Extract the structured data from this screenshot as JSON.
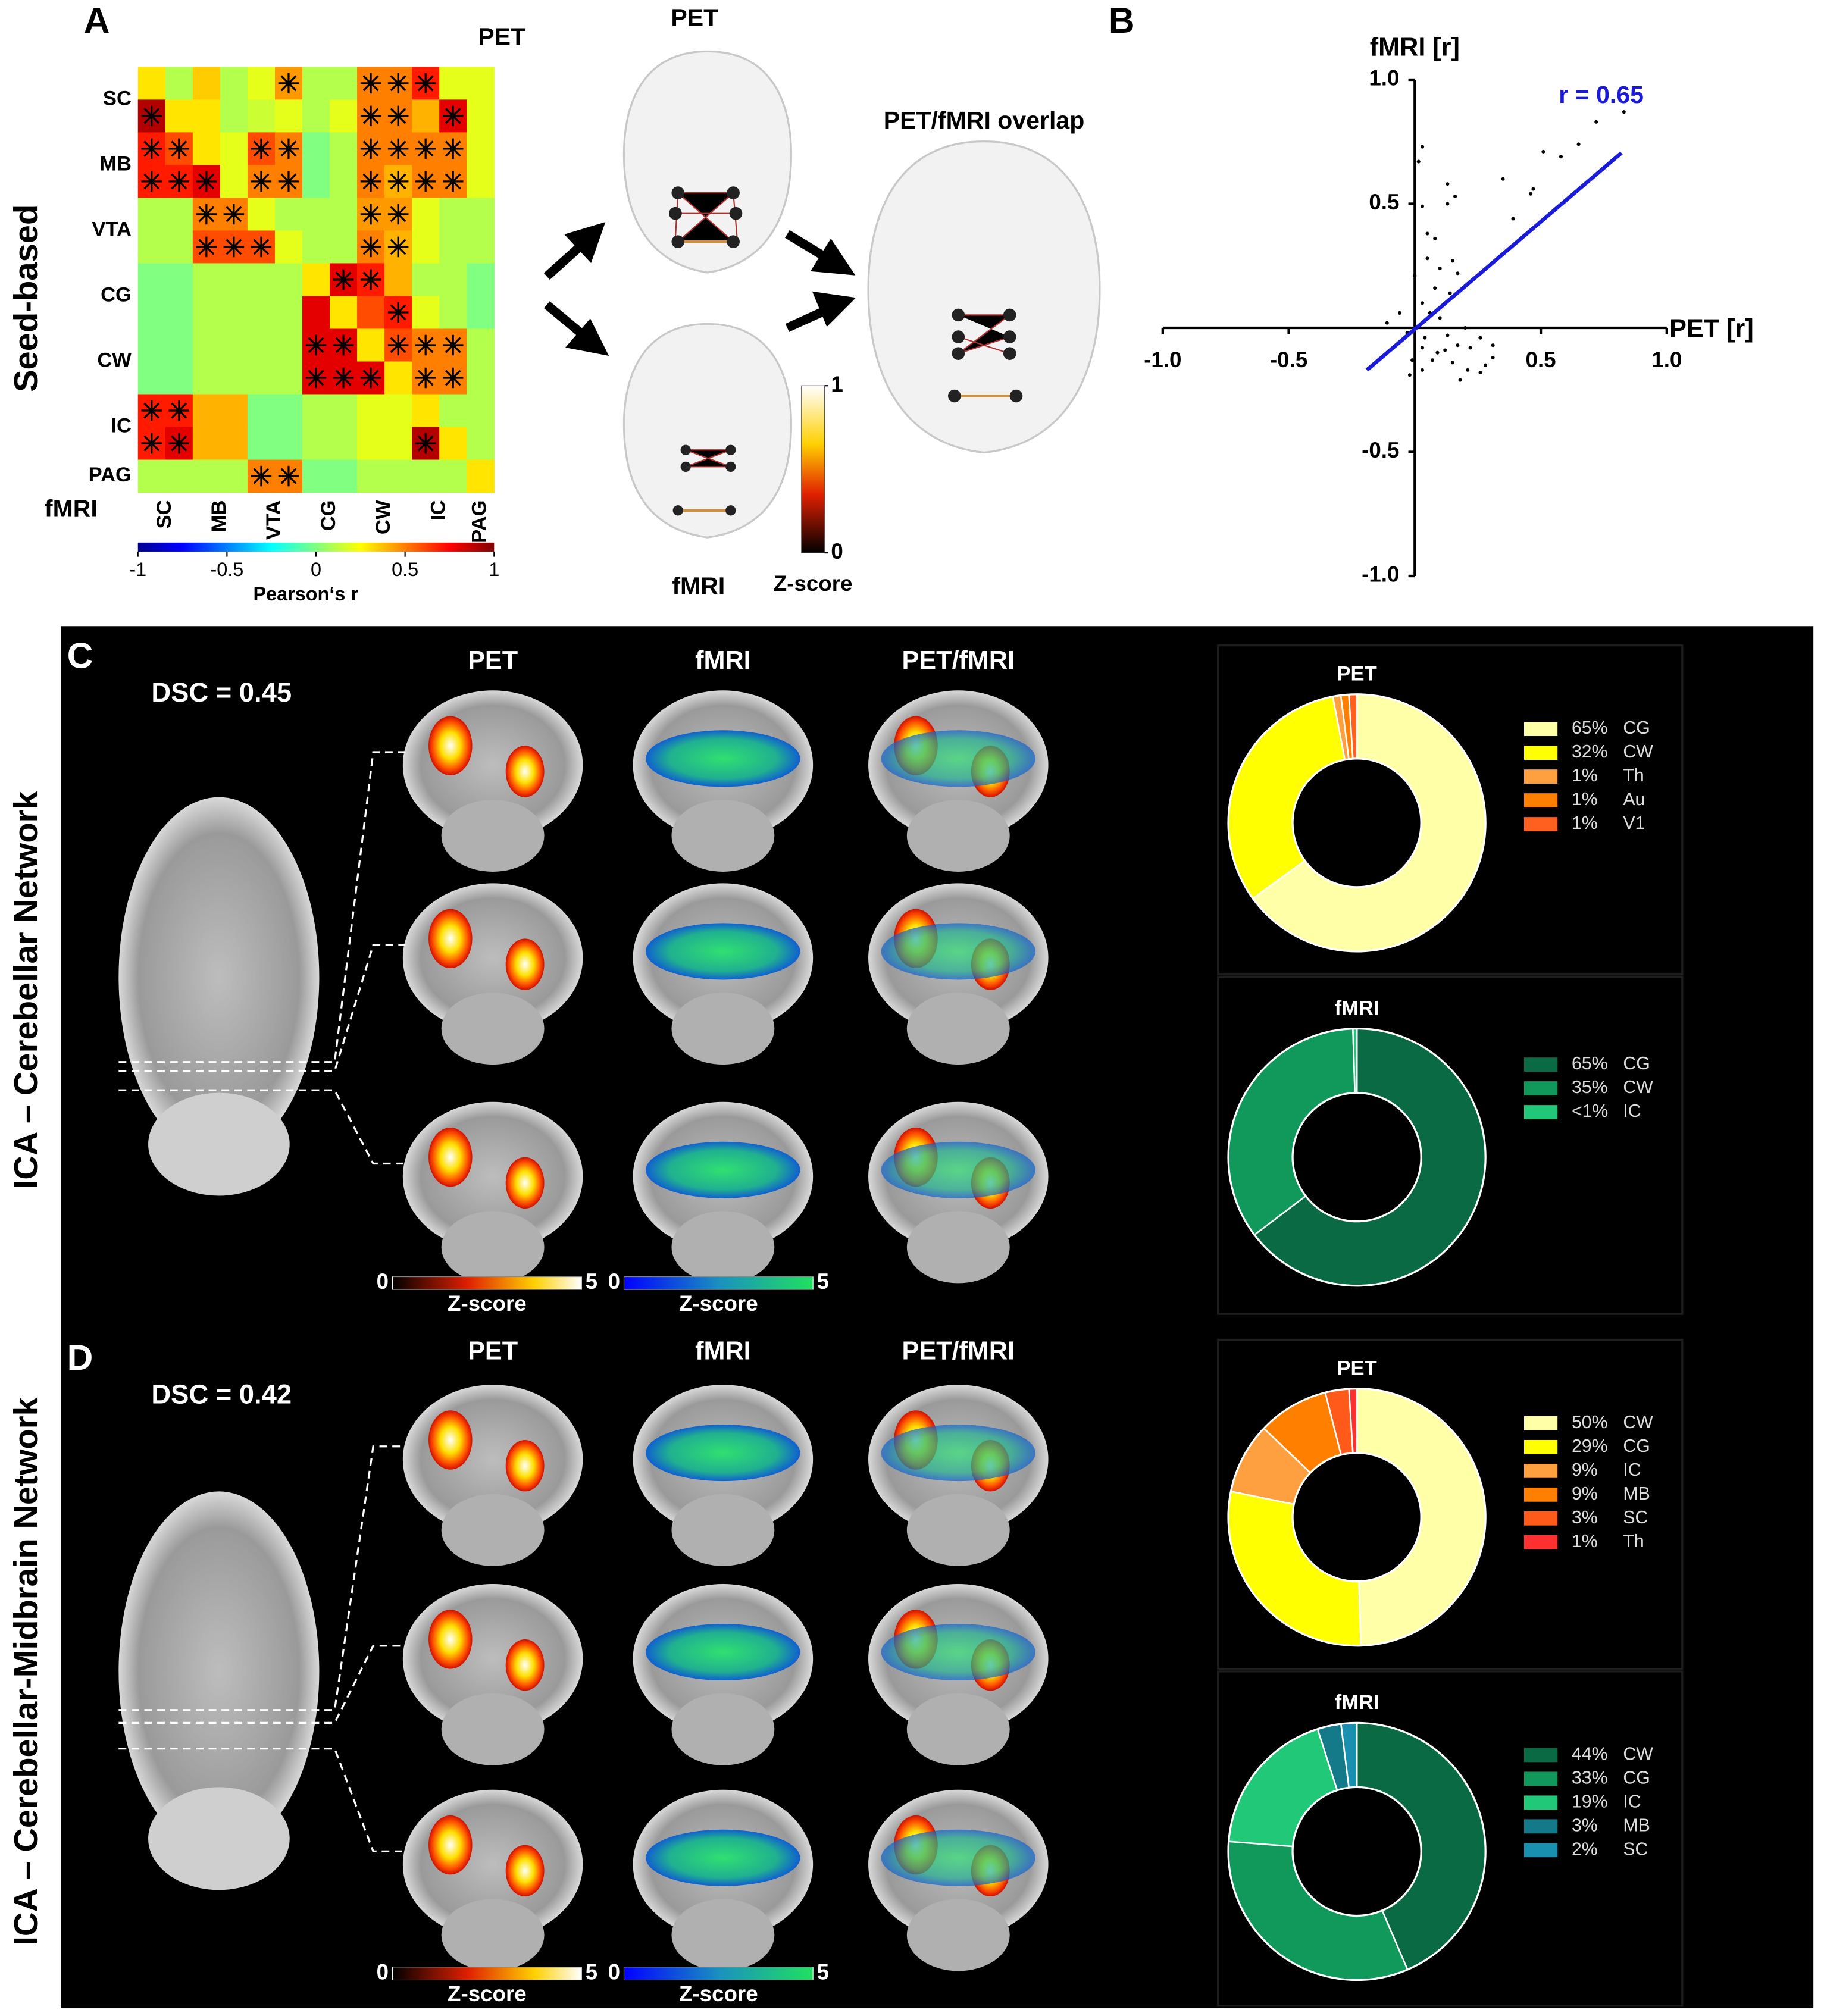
{
  "panel_letters": [
    "A",
    "B",
    "C",
    "D"
  ],
  "panel_a": {
    "side_label": "Seed-based",
    "network": {
      "top_title": "PET",
      "bottom_title": "fMRI",
      "overlap_title": "PET/fMRI overlap",
      "colorbar": {
        "label": "Z-score",
        "ticks": [
          0,
          1
        ]
      }
    }
  },
  "panel_c": {
    "side_label": "ICA – Cerebellar Network",
    "dsc": "DSC = 0.45",
    "column_titles": [
      "PET",
      "fMRI",
      "PET/fMRI"
    ],
    "colorbars": [
      {
        "label": "Z-score",
        "ticks": [
          0,
          5
        ]
      },
      {
        "label": "Z-score",
        "ticks": [
          0,
          5
        ]
      }
    ]
  },
  "panel_d": {
    "side_label": "ICA – Cerebellar-Midbrain Network",
    "dsc": "DSC = 0.42",
    "column_titles": [
      "PET",
      "fMRI",
      "PET/fMRI"
    ],
    "colorbars": [
      {
        "label": "Z-score",
        "ticks": [
          0,
          5
        ]
      },
      {
        "label": "Z-score",
        "ticks": [
          0,
          5
        ]
      }
    ]
  },
  "chart_data": [
    {
      "type": "heatmap",
      "title": "PET",
      "corner_label": "fMRI",
      "row_labels": [
        "SC",
        "MB",
        "VTA",
        "CG",
        "CW",
        "IC",
        "PAG"
      ],
      "col_labels": [
        "SC",
        "MB",
        "VTA",
        "CG",
        "CW",
        "IC",
        "PAG"
      ],
      "z": [
        [
          0.3,
          0.1,
          0.35,
          0.1,
          0.2,
          0.45,
          0.1,
          0.1,
          0.5,
          0.5,
          0.7,
          0.2,
          0.2
        ],
        [
          0.9,
          0.3,
          0.3,
          0.1,
          0.15,
          0.2,
          0.1,
          0.2,
          0.5,
          0.5,
          0.4,
          0.8,
          0.2
        ],
        [
          0.7,
          0.6,
          0.3,
          0.2,
          0.6,
          0.5,
          0.0,
          0.1,
          0.5,
          0.5,
          0.5,
          0.5,
          0.2
        ],
        [
          0.7,
          0.7,
          0.8,
          0.2,
          0.5,
          0.5,
          0.0,
          0.1,
          0.5,
          0.4,
          0.5,
          0.5,
          0.2
        ],
        [
          0.1,
          0.1,
          0.5,
          0.5,
          0.2,
          0.1,
          0.1,
          0.1,
          0.45,
          0.45,
          0.2,
          0.1,
          0.1
        ],
        [
          0.1,
          0.1,
          0.6,
          0.6,
          0.6,
          0.2,
          0.1,
          0.1,
          0.5,
          0.4,
          0.2,
          0.1,
          0.1
        ],
        [
          0.0,
          0.0,
          0.1,
          0.1,
          0.1,
          0.1,
          0.3,
          0.8,
          0.7,
          0.4,
          0.1,
          0.1,
          0.0
        ],
        [
          0.0,
          0.0,
          0.1,
          0.1,
          0.1,
          0.1,
          0.8,
          0.3,
          0.6,
          0.7,
          0.2,
          0.1,
          0.0
        ],
        [
          0.0,
          0.0,
          0.1,
          0.1,
          0.1,
          0.1,
          0.8,
          0.8,
          0.3,
          0.6,
          0.5,
          0.5,
          0.1
        ],
        [
          0.0,
          0.0,
          0.1,
          0.1,
          0.1,
          0.1,
          0.8,
          0.8,
          0.8,
          0.3,
          0.5,
          0.5,
          0.1
        ],
        [
          0.7,
          0.7,
          0.4,
          0.4,
          0.0,
          0.0,
          0.1,
          0.1,
          0.2,
          0.2,
          0.3,
          0.1,
          0.1
        ],
        [
          0.7,
          0.8,
          0.4,
          0.4,
          0.0,
          0.0,
          0.1,
          0.1,
          0.2,
          0.2,
          0.9,
          0.3,
          0.1
        ],
        [
          0.1,
          0.1,
          0.1,
          0.1,
          0.5,
          0.5,
          0.0,
          0.0,
          0.1,
          0.1,
          0.1,
          0.1,
          0.3
        ]
      ],
      "significant": [
        [
          0,
          5
        ],
        [
          0,
          8
        ],
        [
          0,
          9
        ],
        [
          0,
          10
        ],
        [
          1,
          0
        ],
        [
          1,
          8
        ],
        [
          1,
          9
        ],
        [
          1,
          11
        ],
        [
          2,
          0
        ],
        [
          2,
          1
        ],
        [
          2,
          4
        ],
        [
          2,
          5
        ],
        [
          2,
          8
        ],
        [
          2,
          9
        ],
        [
          2,
          10
        ],
        [
          2,
          11
        ],
        [
          3,
          0
        ],
        [
          3,
          1
        ],
        [
          3,
          2
        ],
        [
          3,
          4
        ],
        [
          3,
          5
        ],
        [
          3,
          8
        ],
        [
          3,
          9
        ],
        [
          3,
          10
        ],
        [
          3,
          11
        ],
        [
          4,
          2
        ],
        [
          4,
          3
        ],
        [
          4,
          8
        ],
        [
          4,
          9
        ],
        [
          5,
          2
        ],
        [
          5,
          3
        ],
        [
          5,
          4
        ],
        [
          5,
          8
        ],
        [
          5,
          9
        ],
        [
          6,
          7
        ],
        [
          6,
          8
        ],
        [
          7,
          9
        ],
        [
          8,
          6
        ],
        [
          8,
          7
        ],
        [
          8,
          9
        ],
        [
          8,
          10
        ],
        [
          8,
          11
        ],
        [
          9,
          6
        ],
        [
          9,
          7
        ],
        [
          9,
          8
        ],
        [
          9,
          10
        ],
        [
          9,
          11
        ],
        [
          10,
          0
        ],
        [
          10,
          1
        ],
        [
          11,
          0
        ],
        [
          11,
          1
        ],
        [
          11,
          10
        ],
        [
          12,
          4
        ],
        [
          12,
          5
        ]
      ],
      "zlim": [
        -1,
        1
      ],
      "colorbar": {
        "label": "Pearson‘s r",
        "ticks": [
          -1,
          -0.5,
          0,
          0.5,
          1
        ]
      }
    },
    {
      "type": "scatter",
      "xlabel": "PET [r]",
      "ylabel": "fMRI [r]",
      "annotation": "r = 0.65",
      "color": "#000000",
      "fit_color": "#1a1adb",
      "x": [
        0.03,
        0.015,
        0.13,
        0.16,
        0.35,
        0.51,
        0.58,
        0.65,
        0.72,
        0.83,
        0.47,
        0.46,
        0.39,
        0.05,
        0.08,
        0.05,
        0.1,
        0.15,
        0.17,
        0.08,
        0.14,
        0.03,
        0.06,
        0.1,
        -0.06,
        -0.11,
        -0.03,
        0.04,
        0.13,
        0.2,
        0.26,
        0.31,
        0.03,
        0.09,
        0.15,
        0.21,
        0.26,
        -0.01,
        -0.02,
        0.03,
        0.07,
        0.12,
        0.17,
        0.22,
        0.31,
        0.18,
        0.28,
        0.0,
        0.03,
        0.13
      ],
      "y": [
        0.73,
        0.67,
        0.58,
        0.53,
        0.6,
        0.71,
        0.69,
        0.74,
        0.83,
        0.87,
        0.56,
        0.54,
        0.44,
        0.38,
        0.36,
        0.28,
        0.24,
        0.27,
        0.22,
        0.16,
        0.14,
        0.1,
        0.06,
        0.04,
        0.06,
        0.02,
        -0.02,
        -0.04,
        -0.03,
        0.0,
        -0.04,
        -0.07,
        -0.08,
        -0.1,
        -0.14,
        -0.17,
        -0.18,
        -0.13,
        -0.19,
        -0.17,
        -0.13,
        -0.09,
        -0.07,
        -0.08,
        -0.12,
        -0.21,
        -0.15,
        0.21,
        0.49,
        0.5
      ],
      "fit": {
        "x": [
          -0.19,
          0.82
        ],
        "y": [
          -0.17,
          0.705
        ]
      },
      "xlim": [
        -1,
        1
      ],
      "ylim": [
        -1,
        1
      ],
      "xticks": [
        {
          "value": -1,
          "label": "-1.0"
        },
        {
          "value": -0.5,
          "label": "-0.5"
        },
        {
          "value": 0.5,
          "label": "0.5"
        },
        {
          "value": 1,
          "label": "1.0"
        }
      ],
      "yticks": [
        {
          "value": -1,
          "label": "-1.0"
        },
        {
          "value": -0.5,
          "label": "-0.5"
        },
        {
          "value": 0.5,
          "label": "0.5"
        },
        {
          "value": 1,
          "label": "1.0"
        }
      ]
    },
    {
      "type": "pie",
      "title": "PET",
      "categories": [
        "CG",
        "CW",
        "Th",
        "Au",
        "V1"
      ],
      "values": [
        65,
        32,
        1,
        1,
        1
      ],
      "value_labels": [
        "65%",
        "32%",
        "1%",
        "1%",
        "1%"
      ],
      "colors": [
        "#ffffa8",
        "#ffff00",
        "#ffa040",
        "#ff8000",
        "#ff6020"
      ]
    },
    {
      "type": "pie",
      "title": "fMRI",
      "categories": [
        "CG",
        "CW",
        "IC"
      ],
      "values": [
        65,
        35,
        0.5
      ],
      "value_labels": [
        "65%",
        "35%",
        "<1%"
      ],
      "colors": [
        "#0a6a43",
        "#10995a",
        "#20c878"
      ]
    },
    {
      "type": "pie",
      "title": "PET",
      "categories": [
        "CW",
        "CG",
        "IC",
        "MB",
        "SC",
        "Th"
      ],
      "values": [
        50,
        29,
        9,
        9,
        3,
        1
      ],
      "value_labels": [
        "50%",
        "29%",
        "9%",
        "9%",
        "3%",
        "1%"
      ],
      "colors": [
        "#ffffa8",
        "#ffff00",
        "#ffa040",
        "#ff8000",
        "#ff5a1a",
        "#ff3030"
      ]
    },
    {
      "type": "pie",
      "title": "fMRI",
      "categories": [
        "CW",
        "CG",
        "IC",
        "MB",
        "SC"
      ],
      "values": [
        44,
        33,
        19,
        3,
        2
      ],
      "value_labels": [
        "44%",
        "33%",
        "19%",
        "3%",
        "2%"
      ],
      "colors": [
        "#0a6a43",
        "#10995a",
        "#20c878",
        "#147a8a",
        "#1a90b0"
      ]
    }
  ]
}
